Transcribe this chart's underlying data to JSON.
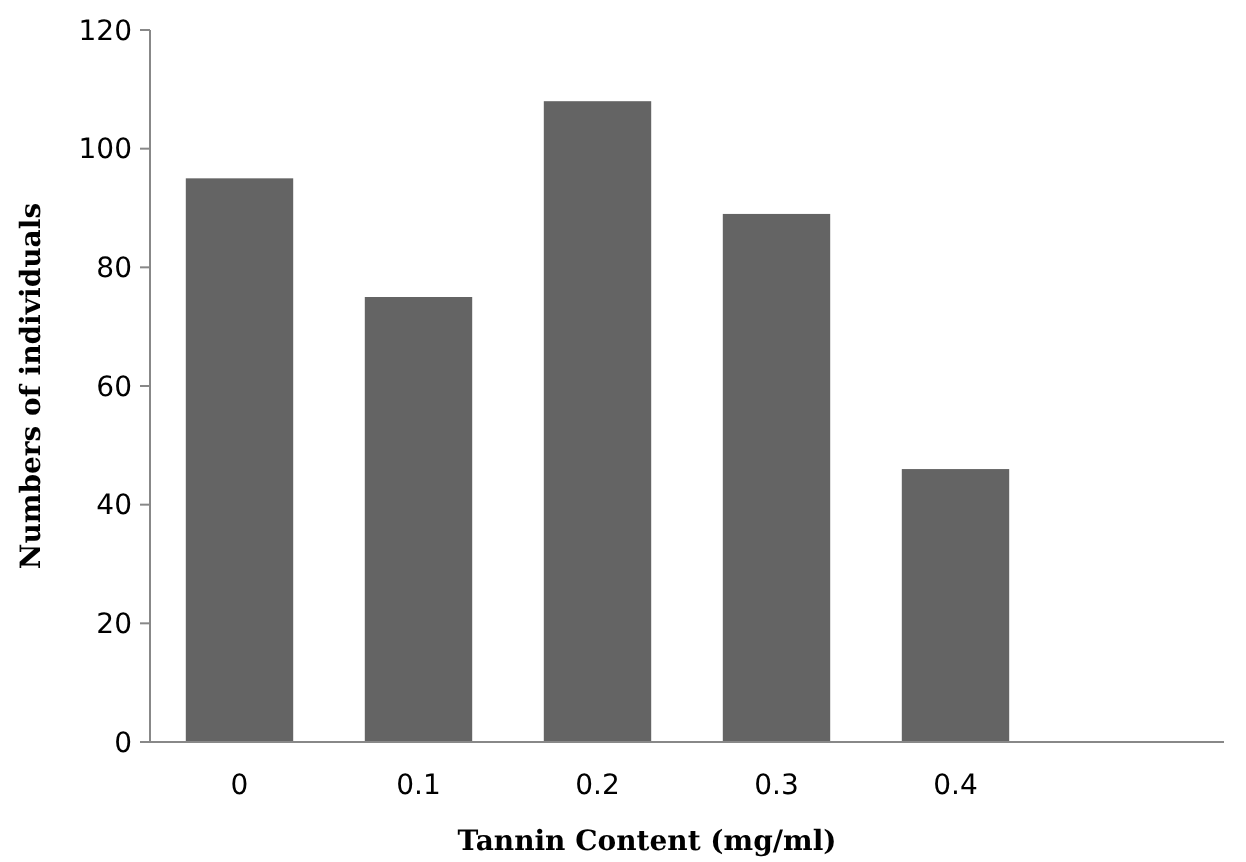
{
  "chart_data": {
    "type": "bar",
    "xlabel": "Tannin Content (mg/ml)",
    "ylabel": "Numbers of individuals",
    "categories": [
      "0",
      "0.1",
      "0.2",
      "0.3",
      "0.4",
      null
    ],
    "values": [
      95,
      75,
      108,
      89,
      46,
      null
    ],
    "color": "#646464",
    "ylim": [
      0,
      120
    ],
    "yticks": [
      0,
      20,
      40,
      60,
      80,
      100,
      120
    ],
    "grid": false
  }
}
